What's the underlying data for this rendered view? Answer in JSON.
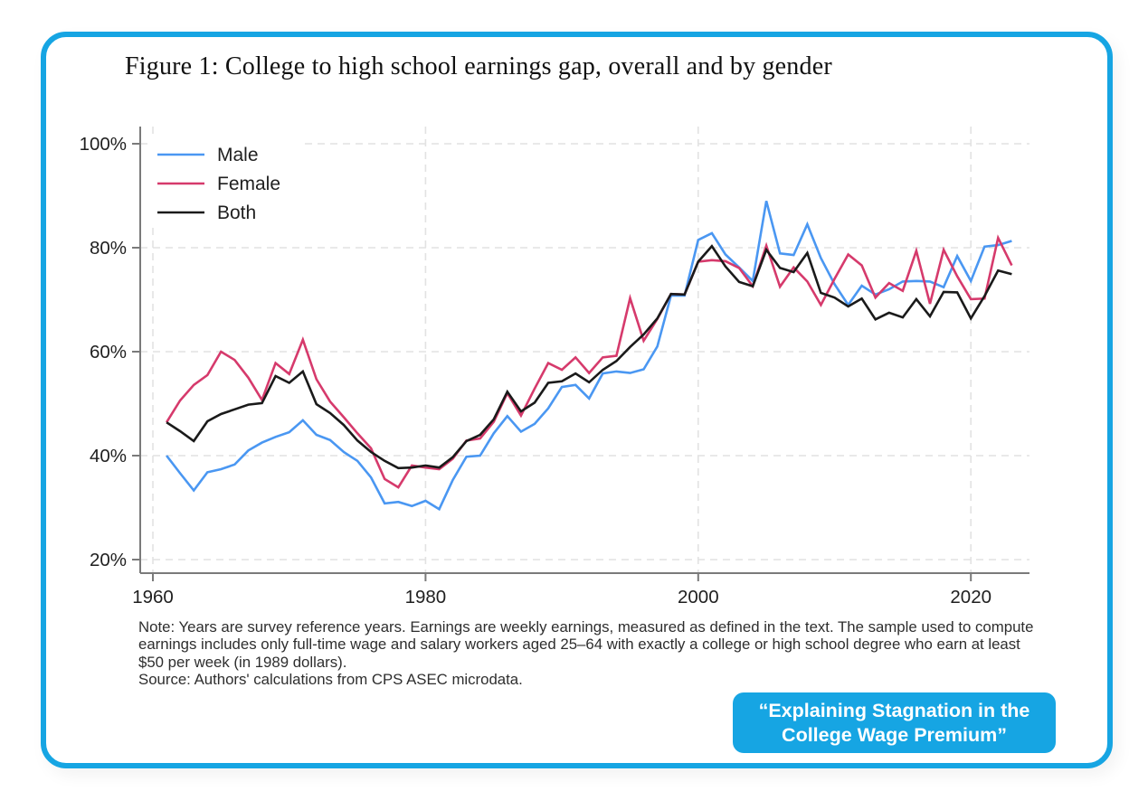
{
  "figure": {
    "title": "Figure 1: College to high school earnings gap, overall and by gender",
    "note": "Note: Years are survey reference years. Earnings are weekly earnings, measured as defined in the text. The sample used to compute earnings includes only full-time wage and salary workers aged 25–64 with exactly a college or high school degree who earn at least $50 per week (in 1989 dollars).",
    "source": "Source: Authors' calculations from CPS ASEC microdata.",
    "badge_line1": "“Explaining Stagnation in the",
    "badge_line2": "College Wage Premium”"
  },
  "colors": {
    "accent": "#16a5e3",
    "male": "#4a97f2",
    "female": "#d63a6c",
    "both": "#1a1a1a",
    "grid": "#e2e2e2",
    "axis": "#7a7a7a",
    "tick_text": "#1f1f1f",
    "legend_bg": "#ffffff",
    "badge_text": "#ffffff"
  },
  "chart_data": {
    "type": "line",
    "title": "College to high school earnings gap, overall and by gender",
    "xlabel": "",
    "ylabel": "",
    "grid": "dashed",
    "legend_position": "top-left",
    "xlim": [
      1959,
      2024.5
    ],
    "ylim": [
      17,
      104
    ],
    "x_ticks": [
      1960,
      1980,
      2000,
      2020
    ],
    "x_tick_labels": [
      "1960",
      "1980",
      "2000",
      "2020"
    ],
    "y_ticks": [
      20,
      40,
      60,
      80,
      100
    ],
    "y_tick_labels": [
      "20%",
      "40%",
      "60%",
      "80%",
      "100%"
    ],
    "x": [
      1961,
      1962,
      1963,
      1964,
      1965,
      1966,
      1967,
      1968,
      1969,
      1970,
      1971,
      1972,
      1973,
      1974,
      1975,
      1976,
      1977,
      1978,
      1979,
      1980,
      1981,
      1982,
      1983,
      1984,
      1985,
      1986,
      1987,
      1988,
      1989,
      1990,
      1991,
      1992,
      1993,
      1994,
      1995,
      1996,
      1997,
      1998,
      1999,
      2000,
      2001,
      2002,
      2003,
      2004,
      2005,
      2006,
      2007,
      2008,
      2009,
      2010,
      2011,
      2012,
      2013,
      2014,
      2015,
      2016,
      2017,
      2018,
      2019,
      2020,
      2021,
      2022,
      2023
    ],
    "series": [
      {
        "name": "Male",
        "color": "#4a97f2",
        "values": [
          40.0,
          36.6,
          33.3,
          36.8,
          37.4,
          38.3,
          41.0,
          42.5,
          43.6,
          44.5,
          46.8,
          44.0,
          43.0,
          40.7,
          39.0,
          35.8,
          30.8,
          31.1,
          30.3,
          31.3,
          29.7,
          35.3,
          39.8,
          40.0,
          44.3,
          47.6,
          44.6,
          46.1,
          49.1,
          53.2,
          53.6,
          51.0,
          55.8,
          56.2,
          55.9,
          56.6,
          61.0,
          70.8,
          70.8,
          81.5,
          82.8,
          78.7,
          76.2,
          73.6,
          89.0,
          78.9,
          78.6,
          84.5,
          78.0,
          73.0,
          69.0,
          72.7,
          71.0,
          72.0,
          73.5,
          73.6,
          73.5,
          72.4,
          78.4,
          73.6,
          80.2,
          80.5,
          81.3
        ]
      },
      {
        "name": "Female",
        "color": "#d63a6c",
        "values": [
          46.4,
          50.6,
          53.6,
          55.5,
          60.0,
          58.4,
          55.0,
          50.7,
          57.8,
          55.7,
          62.3,
          54.7,
          50.4,
          47.4,
          44.3,
          41.4,
          35.5,
          33.9,
          38.1,
          37.7,
          37.4,
          39.4,
          42.9,
          43.3,
          46.5,
          52.0,
          47.7,
          52.9,
          57.8,
          56.5,
          58.9,
          55.9,
          58.9,
          59.2,
          70.3,
          62.1,
          66.3,
          71.1,
          71.0,
          77.3,
          77.6,
          77.4,
          76.1,
          72.6,
          80.4,
          72.5,
          76.2,
          73.5,
          69.0,
          74.0,
          78.7,
          76.6,
          70.4,
          73.2,
          71.7,
          79.4,
          69.2,
          79.6,
          74.5,
          70.1,
          70.2,
          81.9,
          76.6
        ]
      },
      {
        "name": "Both",
        "color": "#1a1a1a",
        "values": [
          46.4,
          44.7,
          42.8,
          46.6,
          48.0,
          48.9,
          49.8,
          50.1,
          55.3,
          54.0,
          56.2,
          49.9,
          48.2,
          45.9,
          42.9,
          40.7,
          39.0,
          37.6,
          37.7,
          38.1,
          37.7,
          39.7,
          42.8,
          44.0,
          47.0,
          52.3,
          48.5,
          50.2,
          54.0,
          54.3,
          55.8,
          54.1,
          56.5,
          58.2,
          60.9,
          63.3,
          66.4,
          71.1,
          71.0,
          77.3,
          80.3,
          76.4,
          73.4,
          72.6,
          79.6,
          76.1,
          75.3,
          79.0,
          71.3,
          70.4,
          68.7,
          70.2,
          66.2,
          67.5,
          66.6,
          70.1,
          66.8,
          71.5,
          71.4,
          66.4,
          70.7,
          75.6,
          74.9
        ]
      }
    ]
  }
}
